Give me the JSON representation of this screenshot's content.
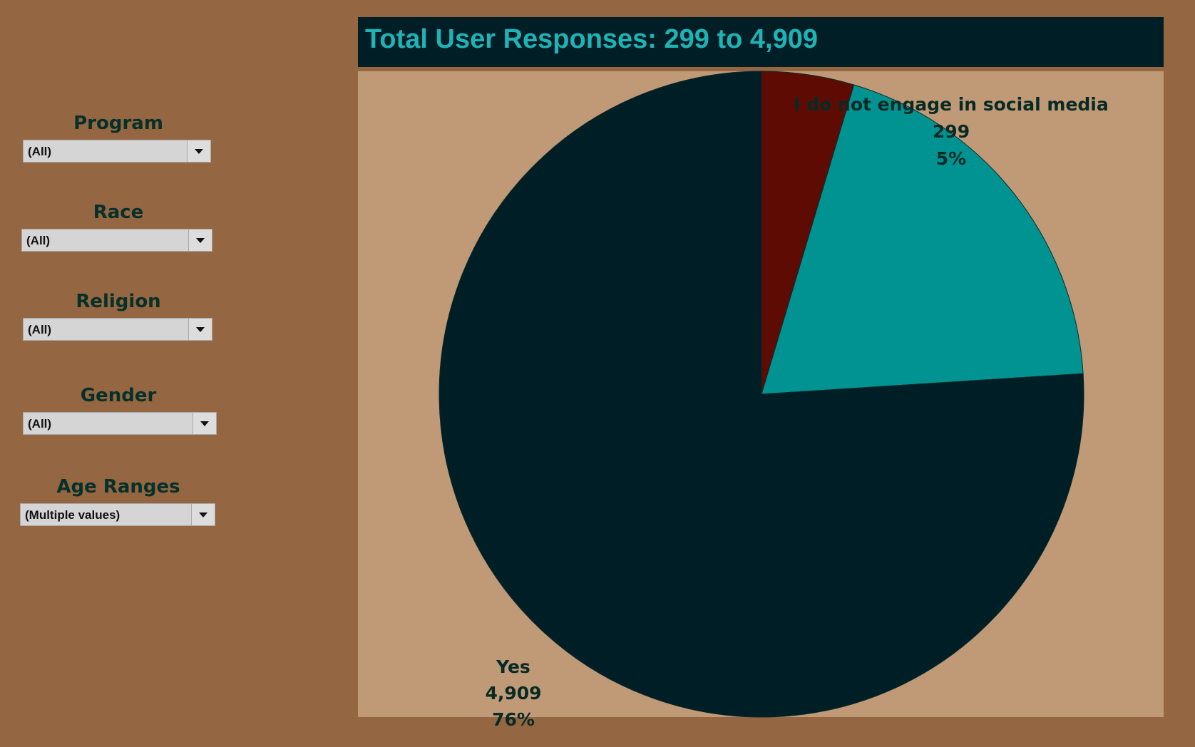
{
  "filters": [
    {
      "label": "Program",
      "value": "(All)"
    },
    {
      "label": "Race",
      "value": "(All)"
    },
    {
      "label": "Religion",
      "value": "(All)"
    },
    {
      "label": "Gender",
      "value": "(All)"
    },
    {
      "label": "Age Ranges",
      "value": "(Multiple values)"
    }
  ],
  "chart_data": {
    "type": "pie",
    "title": "Total User Responses: 299 to 4,909",
    "slices": [
      {
        "label": "I do not engage in social media",
        "value": 299,
        "percent": "5%",
        "color": "#5e0c03"
      },
      {
        "label": "",
        "value": 1250,
        "percent": "",
        "color": "#009391"
      },
      {
        "label": "Yes",
        "value": 4909,
        "percent": "76%",
        "color": "#001e26"
      }
    ],
    "value_labels": [
      "299",
      "4,909"
    ],
    "background": "#c09a76"
  }
}
